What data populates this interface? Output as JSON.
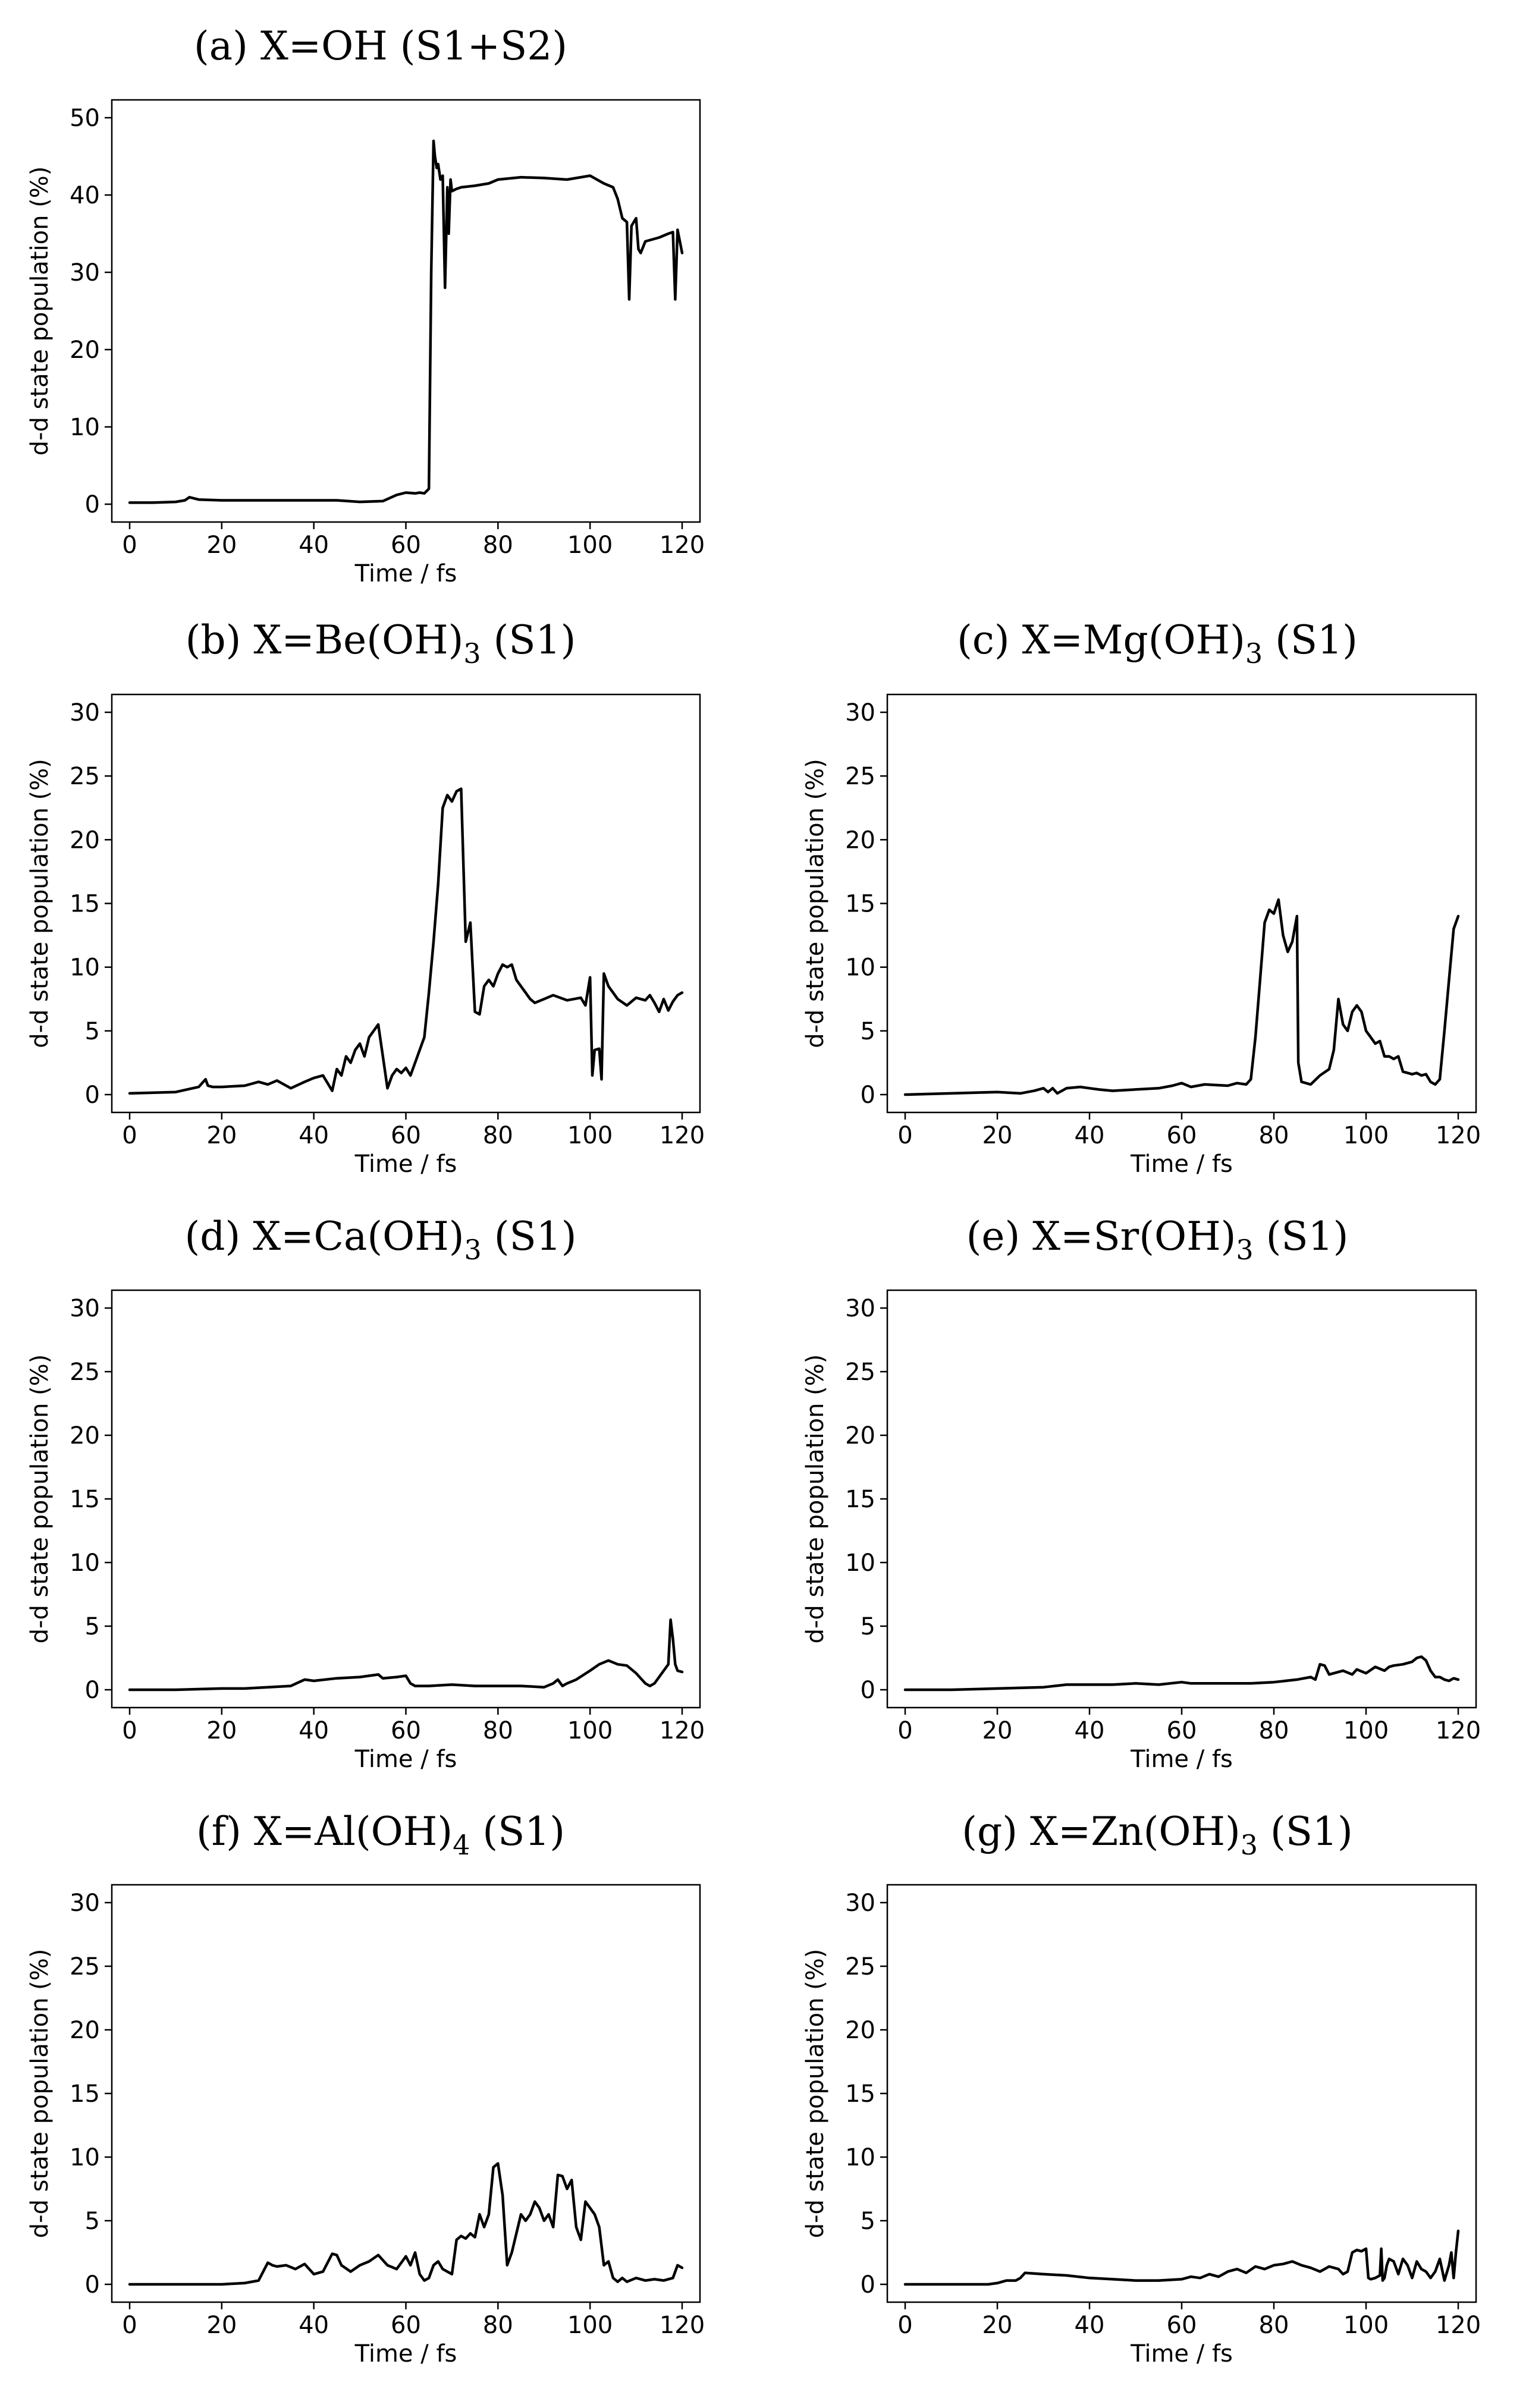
{
  "chart_data": [
    {
      "id": "a",
      "type": "line",
      "title": {
        "main": "(a) X=OH (S1+S2)",
        "sub": "",
        "suffix": ""
      },
      "xlabel": "Time / fs",
      "ylabel": "d-d state population (%)",
      "xlim": [
        0,
        120
      ],
      "ylim": [
        0,
        50
      ],
      "xticks": [
        0,
        20,
        40,
        60,
        80,
        100,
        120
      ],
      "yticks": [
        0,
        10,
        20,
        30,
        40,
        50
      ],
      "series": [
        {
          "name": "d-d state population",
          "x": [
            0,
            5,
            10,
            12,
            13,
            15,
            20,
            25,
            30,
            35,
            40,
            45,
            50,
            55,
            58,
            60,
            62,
            63,
            64,
            65,
            65.5,
            66,
            66.3,
            66.7,
            67,
            67.5,
            68,
            68.5,
            69,
            69.3,
            69.7,
            70,
            71,
            72,
            75,
            78,
            80,
            85,
            90,
            95,
            100,
            103,
            105,
            106,
            107,
            108,
            108.5,
            109,
            110,
            110.5,
            111,
            112,
            115,
            117,
            118,
            118.5,
            119,
            120
          ],
          "y": [
            0.2,
            0.2,
            0.3,
            0.5,
            0.9,
            0.6,
            0.5,
            0.5,
            0.5,
            0.5,
            0.5,
            0.5,
            0.3,
            0.4,
            1.2,
            1.5,
            1.4,
            1.5,
            1.4,
            2,
            30,
            47,
            45,
            43.5,
            44,
            42,
            42.5,
            28,
            41,
            35,
            42,
            40.5,
            40.8,
            41,
            41.2,
            41.5,
            42,
            42.3,
            42.2,
            42,
            42.5,
            41.5,
            41,
            39.5,
            37,
            36.5,
            26.5,
            36,
            37,
            33,
            32.5,
            34,
            34.5,
            35,
            35.2,
            26.5,
            35.5,
            32.5
          ]
        }
      ]
    },
    {
      "id": "b",
      "type": "line",
      "title": {
        "main": "(b) X=Be(OH)",
        "sub": "3",
        "suffix": " (S1)"
      },
      "xlabel": "Time / fs",
      "ylabel": "d-d state population (%)",
      "xlim": [
        0,
        120
      ],
      "ylim": [
        0,
        30
      ],
      "xticks": [
        0,
        20,
        40,
        60,
        80,
        100,
        120
      ],
      "yticks": [
        0,
        5,
        10,
        15,
        20,
        25,
        30
      ],
      "series": [
        {
          "name": "d-d state population",
          "x": [
            0,
            10,
            15,
            16.5,
            17,
            18,
            20,
            25,
            28,
            30,
            32,
            35,
            38,
            40,
            42,
            44,
            45,
            46,
            47,
            48,
            49,
            50,
            51,
            52,
            53,
            54,
            55,
            56,
            57,
            58,
            59,
            60,
            61,
            62,
            63,
            64,
            65,
            66,
            67,
            68,
            69,
            70,
            71,
            72,
            73,
            74,
            75,
            76,
            77,
            78,
            79,
            80,
            81,
            82,
            83,
            84,
            85,
            86,
            87,
            88,
            90,
            92,
            95,
            98,
            99,
            100,
            100.5,
            101,
            102,
            102.5,
            103,
            104,
            105,
            106,
            108,
            110,
            112,
            113,
            114,
            115,
            116,
            117,
            118,
            119,
            120
          ],
          "y": [
            0.1,
            0.2,
            0.6,
            1.2,
            0.7,
            0.6,
            0.6,
            0.7,
            1.0,
            0.8,
            1.1,
            0.5,
            1.0,
            1.3,
            1.5,
            0.3,
            2.0,
            1.5,
            3.0,
            2.5,
            3.5,
            4.0,
            3.0,
            4.5,
            5.0,
            5.5,
            3.0,
            0.5,
            1.5,
            2.0,
            1.7,
            2.1,
            1.5,
            2.5,
            3.5,
            4.5,
            8.0,
            12.0,
            16.5,
            22.5,
            23.5,
            23.0,
            23.8,
            24.0,
            12.0,
            13.5,
            6.5,
            6.3,
            8.5,
            9.0,
            8.5,
            9.5,
            10.2,
            10.0,
            10.2,
            9.0,
            8.5,
            8.0,
            7.5,
            7.2,
            7.5,
            7.8,
            7.4,
            7.6,
            7.0,
            9.2,
            1.5,
            3.5,
            3.6,
            1.2,
            9.5,
            8.5,
            8.0,
            7.5,
            7.0,
            7.6,
            7.4,
            7.8,
            7.2,
            6.5,
            7.5,
            6.6,
            7.3,
            7.8,
            8.0
          ]
        }
      ]
    },
    {
      "id": "c",
      "type": "line",
      "title": {
        "main": "(c) X=Mg(OH)",
        "sub": "3",
        "suffix": " (S1)"
      },
      "xlabel": "Time / fs",
      "ylabel": "d-d state population (%)",
      "xlim": [
        0,
        120
      ],
      "ylim": [
        0,
        30
      ],
      "xticks": [
        0,
        20,
        40,
        60,
        80,
        100,
        120
      ],
      "yticks": [
        0,
        5,
        10,
        15,
        20,
        25,
        30
      ],
      "series": [
        {
          "name": "d-d state population",
          "x": [
            0,
            10,
            20,
            25,
            28,
            30,
            31,
            32,
            33,
            35,
            38,
            40,
            42,
            45,
            50,
            55,
            58,
            60,
            62,
            65,
            70,
            72,
            74,
            75,
            76,
            77,
            78,
            79,
            80,
            81,
            82,
            83,
            84,
            85,
            85.3,
            86,
            88,
            90,
            92,
            93,
            94,
            95,
            96,
            97,
            98,
            99,
            100,
            101,
            102,
            103,
            104,
            105,
            106,
            107,
            108,
            109,
            110,
            111,
            112,
            113,
            114,
            115,
            116,
            117,
            118,
            119,
            120
          ],
          "y": [
            0,
            0.1,
            0.2,
            0.1,
            0.3,
            0.5,
            0.2,
            0.5,
            0.1,
            0.5,
            0.6,
            0.5,
            0.4,
            0.3,
            0.4,
            0.5,
            0.7,
            0.9,
            0.6,
            0.8,
            0.7,
            0.9,
            0.8,
            1.2,
            4.5,
            9.0,
            13.5,
            14.5,
            14.2,
            15.3,
            12.5,
            11.2,
            12.0,
            14.0,
            2.5,
            1.0,
            0.8,
            1.5,
            2.0,
            3.5,
            7.5,
            5.5,
            5.0,
            6.5,
            7.0,
            6.5,
            5.0,
            4.5,
            4.0,
            4.2,
            3.0,
            3.0,
            2.8,
            3.0,
            1.8,
            1.7,
            1.6,
            1.7,
            1.5,
            1.6,
            1.0,
            0.8,
            1.2,
            5.0,
            9.0,
            13.0,
            14.0
          ]
        }
      ]
    },
    {
      "id": "d",
      "type": "line",
      "title": {
        "main": "(d) X=Ca(OH)",
        "sub": "3",
        "suffix": " (S1)"
      },
      "xlabel": "Time / fs",
      "ylabel": "d-d state population (%)",
      "xlim": [
        0,
        120
      ],
      "ylim": [
        0,
        30
      ],
      "xticks": [
        0,
        20,
        40,
        60,
        80,
        100,
        120
      ],
      "yticks": [
        0,
        5,
        10,
        15,
        20,
        25,
        30
      ],
      "series": [
        {
          "name": "d-d state population",
          "x": [
            0,
            10,
            20,
            25,
            30,
            35,
            38,
            40,
            45,
            50,
            54,
            55,
            58,
            60,
            61,
            62,
            65,
            70,
            75,
            80,
            85,
            90,
            92,
            93,
            94,
            95,
            97,
            100,
            102,
            104,
            106,
            108,
            110,
            112,
            113,
            114,
            116,
            117,
            117.5,
            118,
            118.5,
            119,
            120
          ],
          "y": [
            0,
            0,
            0.1,
            0.1,
            0.2,
            0.3,
            0.8,
            0.7,
            0.9,
            1.0,
            1.2,
            0.9,
            1.0,
            1.1,
            0.5,
            0.3,
            0.3,
            0.4,
            0.3,
            0.3,
            0.3,
            0.2,
            0.5,
            0.8,
            0.3,
            0.5,
            0.8,
            1.5,
            2.0,
            2.3,
            2.0,
            1.9,
            1.3,
            0.5,
            0.3,
            0.5,
            1.5,
            2.0,
            5.5,
            4.0,
            2.0,
            1.5,
            1.4
          ]
        }
      ]
    },
    {
      "id": "e",
      "type": "line",
      "title": {
        "main": "(e) X=Sr(OH)",
        "sub": "3",
        "suffix": " (S1)"
      },
      "xlabel": "Time / fs",
      "ylabel": "d-d state population (%)",
      "xlim": [
        0,
        120
      ],
      "ylim": [
        0,
        30
      ],
      "xticks": [
        0,
        20,
        40,
        60,
        80,
        100,
        120
      ],
      "yticks": [
        0,
        5,
        10,
        15,
        20,
        25,
        30
      ],
      "series": [
        {
          "name": "d-d state population",
          "x": [
            0,
            10,
            20,
            30,
            35,
            40,
            45,
            50,
            55,
            60,
            62,
            65,
            70,
            75,
            80,
            85,
            88,
            89,
            90,
            91,
            92,
            93,
            95,
            97,
            98,
            100,
            102,
            104,
            105,
            106,
            108,
            110,
            111,
            112,
            113,
            114,
            115,
            116,
            117,
            118,
            119,
            120
          ],
          "y": [
            0,
            0,
            0.1,
            0.2,
            0.4,
            0.4,
            0.4,
            0.5,
            0.4,
            0.6,
            0.5,
            0.5,
            0.5,
            0.5,
            0.6,
            0.8,
            1.0,
            0.8,
            2.0,
            1.9,
            1.2,
            1.3,
            1.5,
            1.2,
            1.6,
            1.3,
            1.8,
            1.5,
            1.8,
            1.9,
            2.0,
            2.2,
            2.5,
            2.6,
            2.3,
            1.5,
            1.0,
            1.0,
            0.8,
            0.7,
            0.9,
            0.8
          ]
        }
      ]
    },
    {
      "id": "f",
      "type": "line",
      "title": {
        "main": "(f) X=Al(OH)",
        "sub": "4",
        "suffix": " (S1)"
      },
      "xlabel": "Time / fs",
      "ylabel": "d-d state population (%)",
      "xlim": [
        0,
        120
      ],
      "ylim": [
        0,
        30
      ],
      "xticks": [
        0,
        20,
        40,
        60,
        80,
        100,
        120
      ],
      "yticks": [
        0,
        5,
        10,
        15,
        20,
        25,
        30
      ],
      "series": [
        {
          "name": "d-d state population",
          "x": [
            0,
            10,
            20,
            25,
            28,
            30,
            31,
            32,
            34,
            36,
            38,
            40,
            42,
            44,
            45,
            46,
            48,
            50,
            52,
            54,
            56,
            58,
            60,
            61,
            62,
            63,
            64,
            65,
            66,
            67,
            68,
            69,
            70,
            71,
            72,
            73,
            74,
            75,
            76,
            77,
            78,
            79,
            80,
            81,
            82,
            83,
            84,
            85,
            86,
            87,
            88,
            89,
            90,
            91,
            92,
            93,
            94,
            95,
            96,
            97,
            98,
            99,
            100,
            101,
            102,
            103,
            104,
            105,
            106,
            107,
            108,
            110,
            112,
            114,
            116,
            118,
            119,
            120
          ],
          "y": [
            0,
            0,
            0,
            0.1,
            0.3,
            1.7,
            1.5,
            1.4,
            1.5,
            1.2,
            1.6,
            0.8,
            1.0,
            2.4,
            2.3,
            1.5,
            1.0,
            1.5,
            1.8,
            2.3,
            1.5,
            1.2,
            2.2,
            1.5,
            2.5,
            0.8,
            0.3,
            0.5,
            1.5,
            1.8,
            1.2,
            1.0,
            0.8,
            3.5,
            3.8,
            3.6,
            4.0,
            3.7,
            5.5,
            4.5,
            5.5,
            9.2,
            9.5,
            7.0,
            1.5,
            2.5,
            4.0,
            5.5,
            5.0,
            5.5,
            6.5,
            6.0,
            5.0,
            5.5,
            4.5,
            8.6,
            8.5,
            7.5,
            8.2,
            4.5,
            3.5,
            6.5,
            6.0,
            5.5,
            4.5,
            1.5,
            1.8,
            0.5,
            0.2,
            0.5,
            0.2,
            0.5,
            0.3,
            0.4,
            0.3,
            0.5,
            1.5,
            1.3
          ]
        }
      ]
    },
    {
      "id": "g",
      "type": "line",
      "title": {
        "main": "(g) X=Zn(OH)",
        "sub": "3",
        "suffix": " (S1)"
      },
      "xlabel": "Time / fs",
      "ylabel": "d-d state population (%)",
      "xlim": [
        0,
        120
      ],
      "ylim": [
        0,
        30
      ],
      "xticks": [
        0,
        20,
        40,
        60,
        80,
        100,
        120
      ],
      "yticks": [
        0,
        5,
        10,
        15,
        20,
        25,
        30
      ],
      "series": [
        {
          "name": "d-d state population",
          "x": [
            0,
            10,
            18,
            20,
            22,
            24,
            25,
            26,
            30,
            35,
            40,
            45,
            50,
            55,
            60,
            62,
            64,
            66,
            68,
            70,
            72,
            74,
            76,
            78,
            80,
            82,
            84,
            86,
            88,
            90,
            92,
            94,
            95,
            96,
            97,
            98,
            99,
            100,
            100.5,
            101,
            102,
            103,
            103.3,
            103.6,
            104,
            104.5,
            105,
            106,
            107,
            108,
            109,
            110,
            111,
            112,
            113,
            114,
            115,
            116,
            117,
            118,
            118.5,
            119,
            119.5,
            120
          ],
          "y": [
            0,
            0,
            0,
            0.1,
            0.3,
            0.3,
            0.5,
            0.9,
            0.8,
            0.7,
            0.5,
            0.4,
            0.3,
            0.3,
            0.4,
            0.6,
            0.5,
            0.8,
            0.6,
            1.0,
            1.2,
            0.9,
            1.4,
            1.2,
            1.5,
            1.6,
            1.8,
            1.5,
            1.3,
            1.0,
            1.4,
            1.2,
            0.8,
            1.0,
            2.5,
            2.7,
            2.6,
            2.8,
            0.5,
            0.4,
            0.5,
            0.7,
            2.8,
            0.3,
            0.5,
            1.5,
            2.0,
            1.8,
            0.8,
            2.0,
            1.5,
            0.5,
            1.8,
            1.2,
            1.0,
            0.5,
            1.0,
            2.0,
            0.3,
            1.5,
            2.5,
            0.5,
            2.5,
            4.2
          ]
        }
      ]
    }
  ]
}
